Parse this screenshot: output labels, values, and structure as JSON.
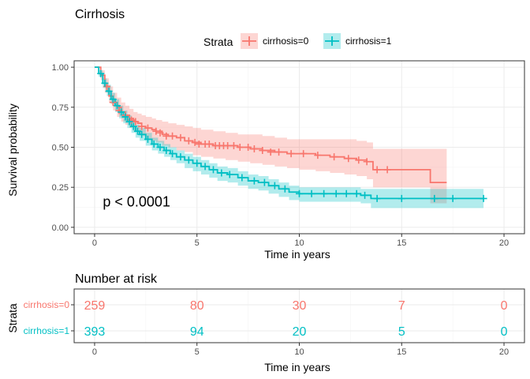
{
  "colors": {
    "strata0": "#F8766D",
    "strata1": "#00BFC4"
  },
  "chart_data": [
    {
      "type": "line",
      "subtype": "kaplan-meier",
      "title": "Cirrhosis",
      "xlabel": "Time in years",
      "ylabel": "Survival probability",
      "xlim": [
        -1,
        21
      ],
      "ylim": [
        -0.04,
        1.04
      ],
      "x_ticks": [
        0,
        5,
        10,
        15,
        20
      ],
      "y_ticks": [
        0,
        0.25,
        0.5,
        0.75,
        1
      ],
      "y_tick_labels": [
        "0.00",
        "0.25",
        "0.50",
        "0.75",
        "1.00"
      ],
      "grid": true,
      "legend": {
        "title": "Strata",
        "position": "top",
        "entries": [
          "cirrhosis=0",
          "cirrhosis=1"
        ]
      },
      "annotation": "p < 0.0001",
      "series": [
        {
          "name": "cirrhosis=0",
          "x": [
            0,
            0.3,
            0.5,
            0.7,
            0.9,
            1.1,
            1.3,
            1.5,
            1.7,
            1.9,
            2.1,
            2.3,
            2.5,
            2.8,
            3.0,
            3.3,
            3.6,
            4.0,
            4.4,
            4.8,
            5.2,
            5.8,
            6.4,
            7.0,
            7.6,
            8.2,
            8.8,
            9.4,
            10.0,
            10.8,
            11.5,
            12.2,
            12.8,
            13.3,
            13.6,
            14.5,
            15.5,
            16.2,
            16.4,
            17.2
          ],
          "y": [
            1.0,
            0.95,
            0.88,
            0.82,
            0.78,
            0.75,
            0.72,
            0.7,
            0.68,
            0.66,
            0.65,
            0.63,
            0.62,
            0.61,
            0.6,
            0.58,
            0.57,
            0.56,
            0.54,
            0.53,
            0.52,
            0.51,
            0.51,
            0.5,
            0.49,
            0.48,
            0.47,
            0.46,
            0.46,
            0.45,
            0.44,
            0.43,
            0.42,
            0.41,
            0.36,
            0.36,
            0.36,
            0.36,
            0.28,
            0.28
          ],
          "lower": [
            1.0,
            0.92,
            0.84,
            0.78,
            0.73,
            0.69,
            0.66,
            0.64,
            0.62,
            0.6,
            0.58,
            0.57,
            0.55,
            0.54,
            0.53,
            0.51,
            0.5,
            0.48,
            0.47,
            0.45,
            0.44,
            0.43,
            0.42,
            0.41,
            0.4,
            0.39,
            0.38,
            0.37,
            0.36,
            0.35,
            0.34,
            0.33,
            0.32,
            0.3,
            0.25,
            0.25,
            0.25,
            0.25,
            0.15,
            0.15
          ],
          "upper": [
            1.0,
            0.98,
            0.93,
            0.88,
            0.84,
            0.81,
            0.78,
            0.76,
            0.74,
            0.72,
            0.71,
            0.7,
            0.69,
            0.68,
            0.67,
            0.66,
            0.65,
            0.64,
            0.63,
            0.62,
            0.61,
            0.6,
            0.59,
            0.58,
            0.58,
            0.57,
            0.56,
            0.55,
            0.55,
            0.55,
            0.55,
            0.55,
            0.54,
            0.53,
            0.49,
            0.49,
            0.49,
            0.49,
            0.49,
            0.49
          ],
          "censor_x": [
            0.6,
            0.9,
            1.2,
            1.5,
            1.8,
            2.0,
            2.3,
            2.6,
            3.0,
            3.2,
            3.5,
            3.8,
            4.2,
            4.6,
            4.9,
            5.1,
            5.4,
            5.6,
            5.9,
            6.1,
            6.3,
            6.5,
            6.8,
            7.1,
            7.5,
            7.8,
            8.2,
            8.6,
            9.0,
            9.6,
            10.2,
            10.9,
            11.7,
            12.4,
            12.9,
            13.3,
            13.8,
            14.3
          ],
          "censor_y": [
            0.88,
            0.78,
            0.73,
            0.7,
            0.67,
            0.66,
            0.63,
            0.62,
            0.6,
            0.59,
            0.57,
            0.57,
            0.56,
            0.54,
            0.53,
            0.52,
            0.52,
            0.52,
            0.51,
            0.51,
            0.51,
            0.51,
            0.51,
            0.5,
            0.5,
            0.49,
            0.48,
            0.47,
            0.47,
            0.46,
            0.46,
            0.45,
            0.44,
            0.43,
            0.42,
            0.41,
            0.36,
            0.36
          ]
        },
        {
          "name": "cirrhosis=1",
          "x": [
            0,
            0.2,
            0.4,
            0.6,
            0.8,
            1.0,
            1.2,
            1.4,
            1.6,
            1.8,
            2.0,
            2.2,
            2.5,
            2.8,
            3.1,
            3.4,
            3.7,
            4.0,
            4.4,
            4.8,
            5.2,
            5.6,
            6.0,
            6.5,
            7.0,
            7.5,
            8.0,
            8.5,
            9.0,
            9.5,
            10.0,
            11.0,
            12.0,
            13.0,
            13.5,
            15.0,
            17.0,
            19.0
          ],
          "y": [
            1.0,
            0.96,
            0.9,
            0.85,
            0.8,
            0.76,
            0.72,
            0.69,
            0.66,
            0.63,
            0.6,
            0.58,
            0.55,
            0.52,
            0.5,
            0.48,
            0.46,
            0.44,
            0.42,
            0.4,
            0.38,
            0.36,
            0.34,
            0.33,
            0.31,
            0.29,
            0.28,
            0.26,
            0.24,
            0.22,
            0.21,
            0.21,
            0.21,
            0.2,
            0.18,
            0.18,
            0.18,
            0.18
          ],
          "lower": [
            1.0,
            0.94,
            0.87,
            0.82,
            0.77,
            0.72,
            0.68,
            0.65,
            0.62,
            0.59,
            0.56,
            0.54,
            0.51,
            0.48,
            0.46,
            0.44,
            0.42,
            0.4,
            0.37,
            0.35,
            0.33,
            0.31,
            0.29,
            0.28,
            0.26,
            0.24,
            0.23,
            0.21,
            0.19,
            0.17,
            0.16,
            0.16,
            0.16,
            0.15,
            0.12,
            0.12,
            0.12,
            0.12
          ],
          "upper": [
            1.0,
            0.98,
            0.93,
            0.89,
            0.84,
            0.8,
            0.76,
            0.73,
            0.7,
            0.67,
            0.64,
            0.62,
            0.59,
            0.56,
            0.54,
            0.52,
            0.5,
            0.48,
            0.46,
            0.44,
            0.42,
            0.4,
            0.38,
            0.37,
            0.35,
            0.33,
            0.32,
            0.3,
            0.28,
            0.26,
            0.25,
            0.25,
            0.25,
            0.24,
            0.24,
            0.24,
            0.24,
            0.24
          ],
          "censor_x": [
            0.3,
            0.5,
            0.7,
            0.9,
            1.1,
            1.3,
            1.5,
            1.7,
            1.9,
            2.1,
            2.3,
            2.6,
            2.9,
            3.2,
            3.5,
            3.8,
            4.2,
            4.6,
            5.0,
            5.4,
            5.8,
            6.2,
            6.6,
            7.2,
            7.8,
            8.3,
            8.8,
            9.3,
            10.0,
            10.6,
            11.2,
            11.8,
            12.3,
            12.8,
            13.2,
            13.8,
            15.0,
            16.6,
            17.5,
            19.0
          ],
          "censor_y": [
            0.96,
            0.9,
            0.85,
            0.8,
            0.76,
            0.72,
            0.69,
            0.66,
            0.63,
            0.6,
            0.58,
            0.55,
            0.52,
            0.5,
            0.48,
            0.46,
            0.44,
            0.42,
            0.4,
            0.38,
            0.36,
            0.34,
            0.33,
            0.31,
            0.29,
            0.28,
            0.26,
            0.24,
            0.21,
            0.21,
            0.21,
            0.21,
            0.21,
            0.21,
            0.2,
            0.18,
            0.18,
            0.18,
            0.18,
            0.18
          ]
        }
      ]
    },
    {
      "type": "table",
      "title": "Number at risk",
      "xlabel": "Time in years",
      "ylabel": "Strata",
      "xlim": [
        -1,
        21
      ],
      "x_ticks": [
        0,
        5,
        10,
        15,
        20
      ],
      "times": [
        0,
        5,
        10,
        15,
        20
      ],
      "rows": [
        {
          "name": "cirrhosis=0",
          "values": [
            259,
            80,
            30,
            7,
            0
          ]
        },
        {
          "name": "cirrhosis=1",
          "values": [
            393,
            94,
            20,
            5,
            0
          ]
        }
      ]
    }
  ]
}
